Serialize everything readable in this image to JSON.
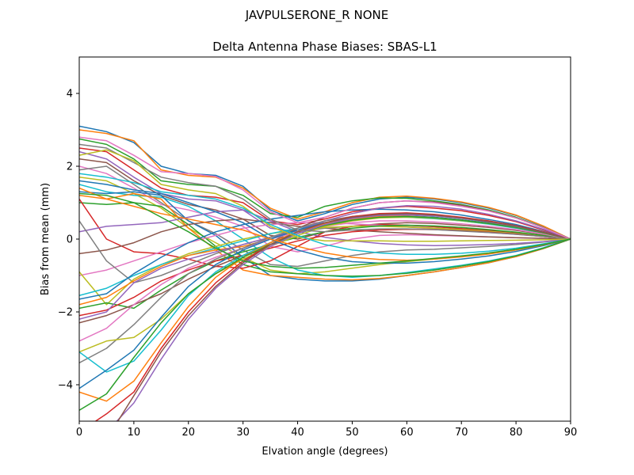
{
  "chart_data": {
    "type": "line",
    "suptitle": "JAVPULSERONE_R  NONE",
    "title": "Delta Antenna Phase Biases: SBAS-L1",
    "xlabel": "Elvation angle (degrees)",
    "ylabel": "Bias from mean (mm)",
    "xlim": [
      0,
      90
    ],
    "ylim": [
      -5,
      5
    ],
    "x_ticks": [
      0,
      10,
      20,
      30,
      40,
      50,
      60,
      70,
      80,
      90
    ],
    "y_ticks": [
      -4,
      -2,
      0,
      2,
      4
    ],
    "y_tick_labels": [
      "−4",
      "−2",
      "0",
      "2",
      "4"
    ],
    "grid": false,
    "legend": false,
    "colors": [
      "#1f77b4",
      "#ff7f0e",
      "#2ca02c",
      "#d62728",
      "#9467bd",
      "#8c564b",
      "#e377c2",
      "#7f7f7f",
      "#bcbd22",
      "#17becf"
    ],
    "x": [
      0,
      5,
      10,
      15,
      20,
      25,
      30,
      35,
      40,
      45,
      50,
      55,
      60,
      65,
      70,
      75,
      80,
      85,
      90
    ],
    "series": [
      {
        "values": [
          3.1,
          2.95,
          2.65,
          2.0,
          1.8,
          1.75,
          1.45,
          0.8,
          0.5,
          0.7,
          0.95,
          1.1,
          1.15,
          1.1,
          1.0,
          0.85,
          0.65,
          0.35,
          0.0
        ]
      },
      {
        "values": [
          3.0,
          2.9,
          2.7,
          1.9,
          1.75,
          1.7,
          1.4,
          0.85,
          0.55,
          0.75,
          1.0,
          1.15,
          1.18,
          1.12,
          1.02,
          0.87,
          0.66,
          0.36,
          0.0
        ]
      },
      {
        "values": [
          2.75,
          2.6,
          2.2,
          1.6,
          1.5,
          1.45,
          1.2,
          0.7,
          0.6,
          0.9,
          1.05,
          1.13,
          1.12,
          1.05,
          0.95,
          0.8,
          0.6,
          0.32,
          0.0
        ]
      },
      {
        "values": [
          2.5,
          2.4,
          1.9,
          1.4,
          1.2,
          1.15,
          1.0,
          0.5,
          0.4,
          0.55,
          0.75,
          0.85,
          0.9,
          0.85,
          0.78,
          0.65,
          0.48,
          0.25,
          0.0
        ]
      },
      {
        "values": [
          2.4,
          2.2,
          1.7,
          1.25,
          1.1,
          1.05,
          0.8,
          0.3,
          0.2,
          0.4,
          0.55,
          0.65,
          0.68,
          0.65,
          0.58,
          0.48,
          0.36,
          0.2,
          0.0
        ]
      },
      {
        "values": [
          2.2,
          2.1,
          1.6,
          1.2,
          0.95,
          0.8,
          0.55,
          0.1,
          0.0,
          0.2,
          0.35,
          0.42,
          0.45,
          0.43,
          0.38,
          0.32,
          0.24,
          0.13,
          0.0
        ]
      },
      {
        "values": [
          2.0,
          1.8,
          1.4,
          0.95,
          0.8,
          0.6,
          0.35,
          -0.2,
          -0.35,
          -0.2,
          0.0,
          0.1,
          0.12,
          0.1,
          0.08,
          0.06,
          0.04,
          0.02,
          0.0
        ]
      },
      {
        "values": [
          1.9,
          2.0,
          1.5,
          1.0,
          0.5,
          0.15,
          -0.3,
          -0.7,
          -0.75,
          -0.6,
          -0.45,
          -0.35,
          -0.3,
          -0.28,
          -0.24,
          -0.2,
          -0.15,
          -0.08,
          0.0
        ]
      },
      {
        "values": [
          1.7,
          1.6,
          1.25,
          0.85,
          0.3,
          -0.1,
          -0.5,
          -0.85,
          -0.95,
          -0.9,
          -0.8,
          -0.7,
          -0.62,
          -0.55,
          -0.48,
          -0.4,
          -0.3,
          -0.16,
          0.0
        ]
      },
      {
        "values": [
          1.5,
          1.3,
          1.2,
          1.15,
          0.9,
          0.5,
          0.0,
          -0.5,
          -0.85,
          -1.0,
          -1.05,
          -1.0,
          -0.92,
          -0.82,
          -0.72,
          -0.6,
          -0.45,
          -0.24,
          0.0
        ]
      },
      {
        "values": [
          1.3,
          1.25,
          1.3,
          1.2,
          0.5,
          0.1,
          -0.5,
          -1.0,
          -1.1,
          -1.15,
          -1.15,
          -1.1,
          -1.0,
          -0.9,
          -0.78,
          -0.65,
          -0.48,
          -0.26,
          0.0
        ]
      },
      {
        "values": [
          1.2,
          1.1,
          1.25,
          1.1,
          0.3,
          -0.3,
          -0.85,
          -1.0,
          -1.05,
          -1.1,
          -1.12,
          -1.08,
          -1.0,
          -0.9,
          -0.78,
          -0.65,
          -0.48,
          -0.26,
          0.0
        ]
      },
      {
        "values": [
          1.0,
          0.95,
          1.0,
          0.9,
          0.4,
          -0.2,
          -0.7,
          -0.9,
          -0.95,
          -1.0,
          -1.02,
          -1.0,
          -0.94,
          -0.85,
          -0.74,
          -0.62,
          -0.46,
          -0.25,
          0.0
        ]
      },
      {
        "values": [
          1.1,
          0.0,
          -0.35,
          -0.4,
          -0.55,
          -0.75,
          -0.8,
          -0.6,
          -0.2,
          0.2,
          0.35,
          0.4,
          0.38,
          0.34,
          0.29,
          0.24,
          0.18,
          0.1,
          0.0
        ]
      },
      {
        "values": [
          0.2,
          0.35,
          0.4,
          0.45,
          0.6,
          0.75,
          0.8,
          0.5,
          0.2,
          0.05,
          -0.05,
          -0.12,
          -0.16,
          -0.18,
          -0.17,
          -0.15,
          -0.12,
          -0.07,
          0.0
        ]
      },
      {
        "values": [
          -0.4,
          -0.3,
          -0.1,
          0.2,
          0.4,
          0.5,
          0.55,
          0.45,
          0.35,
          0.3,
          0.25,
          0.2,
          0.16,
          0.12,
          0.09,
          0.06,
          0.04,
          0.02,
          0.0
        ]
      },
      {
        "values": [
          -1.0,
          -0.85,
          -0.6,
          -0.35,
          -0.1,
          0.1,
          0.3,
          0.4,
          0.45,
          0.45,
          0.42,
          0.38,
          0.33,
          0.28,
          0.23,
          0.18,
          0.13,
          0.07,
          0.0
        ]
      },
      {
        "values": [
          0.5,
          -0.6,
          -1.2,
          -1.0,
          -0.7,
          -0.4,
          -0.15,
          0.05,
          0.2,
          0.3,
          0.35,
          0.36,
          0.34,
          0.3,
          0.26,
          0.21,
          0.15,
          0.08,
          0.0
        ]
      },
      {
        "values": [
          -0.9,
          -1.8,
          -1.1,
          -0.7,
          -0.4,
          -0.2,
          0.0,
          0.15,
          0.25,
          0.32,
          0.35,
          0.35,
          0.33,
          0.3,
          0.26,
          0.21,
          0.15,
          0.08,
          0.0
        ]
      },
      {
        "values": [
          -1.55,
          -1.35,
          -1.0,
          -0.7,
          -0.45,
          -0.25,
          -0.05,
          0.15,
          0.3,
          0.45,
          0.55,
          0.6,
          0.6,
          0.56,
          0.5,
          0.41,
          0.3,
          0.16,
          0.0
        ]
      },
      {
        "values": [
          -1.65,
          -1.5,
          -0.95,
          -0.5,
          -0.1,
          0.2,
          0.4,
          0.55,
          0.65,
          0.75,
          0.8,
          0.82,
          0.8,
          0.75,
          0.66,
          0.54,
          0.4,
          0.21,
          0.0
        ]
      },
      {
        "values": [
          -1.8,
          -1.6,
          -1.15,
          -0.75,
          -0.45,
          -0.3,
          -0.2,
          0.0,
          0.2,
          0.4,
          0.55,
          0.65,
          0.68,
          0.65,
          0.58,
          0.48,
          0.35,
          0.18,
          0.0
        ]
      },
      {
        "values": [
          -1.9,
          -1.75,
          -1.9,
          -1.4,
          -0.95,
          -0.6,
          -0.35,
          -0.15,
          0.05,
          0.2,
          0.3,
          0.36,
          0.38,
          0.36,
          0.32,
          0.26,
          0.19,
          0.1,
          0.0
        ]
      },
      {
        "values": [
          -2.1,
          -1.95,
          -1.6,
          -1.15,
          -0.85,
          -0.6,
          -0.45,
          -0.25,
          -0.05,
          0.1,
          0.2,
          0.25,
          0.27,
          0.26,
          0.23,
          0.19,
          0.14,
          0.07,
          0.0
        ]
      },
      {
        "values": [
          -2.2,
          -2.0,
          -1.2,
          -0.8,
          -0.55,
          -0.35,
          -0.15,
          0.05,
          0.25,
          0.5,
          0.7,
          0.85,
          0.92,
          0.9,
          0.82,
          0.68,
          0.5,
          0.27,
          0.0
        ]
      },
      {
        "values": [
          -2.3,
          -2.1,
          -1.8,
          -1.5,
          -1.1,
          -0.75,
          -0.45,
          -0.1,
          0.3,
          0.6,
          0.85,
          1.0,
          1.05,
          1.02,
          0.93,
          0.78,
          0.58,
          0.31,
          0.0
        ]
      },
      {
        "values": [
          -2.8,
          -2.45,
          -1.8,
          -1.25,
          -0.8,
          -0.5,
          -0.25,
          0.0,
          0.2,
          0.35,
          0.45,
          0.5,
          0.5,
          0.47,
          0.42,
          0.35,
          0.26,
          0.14,
          0.0
        ]
      },
      {
        "values": [
          -3.4,
          -3.0,
          -2.35,
          -1.6,
          -0.95,
          -0.55,
          -0.25,
          0.05,
          0.3,
          0.5,
          0.62,
          0.68,
          0.68,
          0.64,
          0.57,
          0.47,
          0.35,
          0.19,
          0.0
        ]
      },
      {
        "values": [
          -3.1,
          -2.8,
          -2.7,
          -2.2,
          -1.5,
          -0.95,
          -0.55,
          -0.2,
          0.1,
          0.35,
          0.5,
          0.58,
          0.6,
          0.57,
          0.5,
          0.42,
          0.31,
          0.17,
          0.0
        ]
      },
      {
        "values": [
          -3.1,
          -3.65,
          -3.35,
          -2.5,
          -1.55,
          -0.9,
          -0.45,
          -0.1,
          0.2,
          0.42,
          0.56,
          0.62,
          0.62,
          0.58,
          0.51,
          0.42,
          0.31,
          0.17,
          0.0
        ]
      },
      {
        "values": [
          -4.1,
          -3.6,
          -3.05,
          -2.15,
          -1.3,
          -0.7,
          -0.3,
          0.0,
          0.25,
          0.45,
          0.58,
          0.64,
          0.64,
          0.6,
          0.53,
          0.44,
          0.32,
          0.17,
          0.0
        ]
      },
      {
        "values": [
          -4.2,
          -4.45,
          -3.9,
          -2.85,
          -1.85,
          -1.05,
          -0.5,
          -0.1,
          0.2,
          0.42,
          0.56,
          0.62,
          0.63,
          0.59,
          0.52,
          0.43,
          0.32,
          0.17,
          0.0
        ]
      },
      {
        "values": [
          -4.7,
          -4.25,
          -3.25,
          -2.3,
          -1.5,
          -0.95,
          -0.5,
          -0.15,
          0.15,
          0.38,
          0.52,
          0.6,
          0.62,
          0.59,
          0.52,
          0.43,
          0.32,
          0.17,
          0.0
        ]
      },
      {
        "values": [
          -5.3,
          -4.8,
          -4.2,
          -3.0,
          -2.0,
          -1.2,
          -0.6,
          -0.15,
          0.2,
          0.45,
          0.62,
          0.7,
          0.72,
          0.68,
          0.6,
          0.5,
          0.37,
          0.2,
          0.0
        ]
      },
      {
        "values": [
          -5.5,
          -5.3,
          -4.5,
          -3.3,
          -2.2,
          -1.35,
          -0.7,
          -0.2,
          0.15,
          0.4,
          0.57,
          0.65,
          0.67,
          0.64,
          0.57,
          0.47,
          0.35,
          0.19,
          0.0
        ]
      },
      {
        "values": [
          -5.6,
          -5.5,
          -4.3,
          -3.1,
          -2.1,
          -1.3,
          -0.65,
          -0.15,
          0.2,
          0.45,
          0.6,
          0.68,
          0.7,
          0.66,
          0.58,
          0.48,
          0.36,
          0.19,
          0.0
        ]
      },
      {
        "values": [
          2.8,
          2.7,
          2.3,
          1.85,
          1.8,
          1.72,
          1.35,
          0.75,
          0.45,
          0.6,
          0.85,
          1.0,
          1.05,
          1.0,
          0.9,
          0.77,
          0.58,
          0.31,
          0.0
        ]
      },
      {
        "values": [
          2.6,
          2.5,
          2.1,
          1.7,
          1.55,
          1.45,
          1.1,
          0.55,
          0.25,
          0.2,
          0.25,
          0.28,
          0.28,
          0.26,
          0.22,
          0.18,
          0.13,
          0.07,
          0.0
        ]
      },
      {
        "values": [
          2.3,
          2.45,
          2.15,
          1.5,
          1.35,
          1.25,
          0.9,
          0.35,
          0.05,
          -0.05,
          -0.05,
          -0.05,
          -0.06,
          -0.06,
          -0.05,
          -0.04,
          -0.03,
          -0.02,
          0.0
        ]
      },
      {
        "values": [
          1.8,
          1.7,
          1.55,
          1.3,
          1.2,
          1.1,
          0.85,
          0.4,
          0.1,
          -0.15,
          -0.3,
          -0.38,
          -0.42,
          -0.42,
          -0.39,
          -0.33,
          -0.25,
          -0.13,
          0.0
        ]
      },
      {
        "values": [
          1.6,
          1.5,
          1.35,
          1.25,
          1.0,
          0.75,
          0.45,
          0.0,
          -0.3,
          -0.5,
          -0.62,
          -0.66,
          -0.66,
          -0.62,
          -0.55,
          -0.46,
          -0.34,
          -0.18,
          0.0
        ]
      },
      {
        "values": [
          1.4,
          1.1,
          0.9,
          0.7,
          0.55,
          0.4,
          0.25,
          0.0,
          -0.2,
          -0.38,
          -0.5,
          -0.56,
          -0.58,
          -0.55,
          -0.49,
          -0.41,
          -0.3,
          -0.16,
          0.0
        ]
      },
      {
        "values": [
          1.25,
          1.2,
          1.0,
          0.6,
          0.2,
          -0.25,
          -0.6,
          -0.75,
          -0.8,
          -0.78,
          -0.72,
          -0.66,
          -0.6,
          -0.53,
          -0.46,
          -0.38,
          -0.28,
          -0.15,
          0.0
        ]
      }
    ]
  }
}
